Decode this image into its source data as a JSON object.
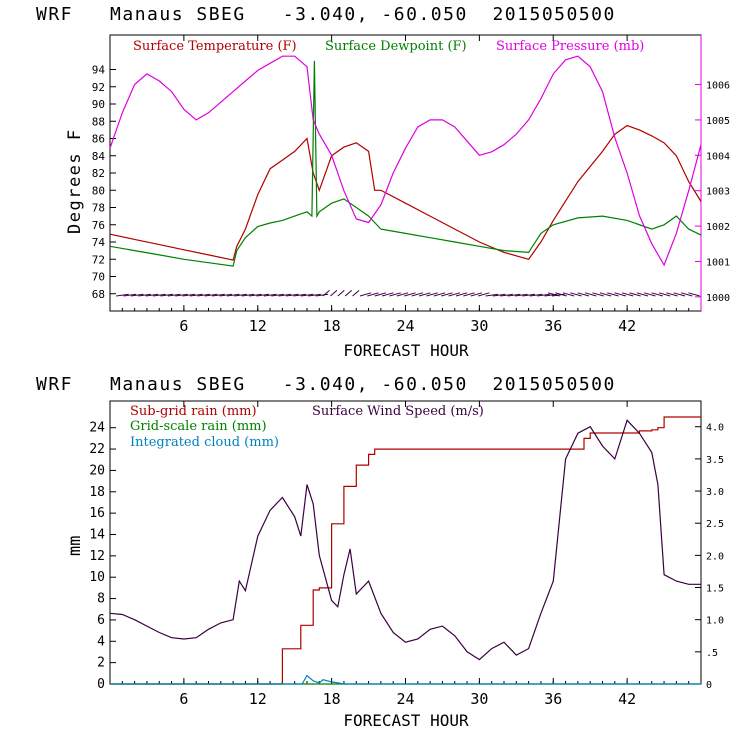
{
  "chart_data": [
    {
      "type": "line",
      "title": "WRF   Manaus SBEG   -3.040, -60.050  2015050500",
      "xlabel": "FORECAST HOUR",
      "ylabel": "Degrees F",
      "y2label": "",
      "x_ticks": [
        "6",
        "12",
        "18",
        "24",
        "30",
        "36",
        "42"
      ],
      "xlim": [
        0,
        48
      ],
      "ylim": [
        66,
        98
      ],
      "y_ticks": [
        "68",
        "70",
        "72",
        "74",
        "76",
        "78",
        "80",
        "82",
        "84",
        "86",
        "88",
        "90",
        "92",
        "94"
      ],
      "y2lim": [
        999.6,
        1007.4
      ],
      "y2_ticks": [
        "1000",
        "1001",
        "1002",
        "1003",
        "1004",
        "1005",
        "1006"
      ],
      "legend": [
        "Surface Temperature (F)",
        "Surface Dewpoint (F)",
        "Surface Pressure (mb)"
      ],
      "legend_placement": "top",
      "colors": {
        "temperature": "#b00000",
        "dewpoint": "#008000",
        "pressure": "#e000e0",
        "wind_barbs": "#3a0040"
      },
      "series": [
        {
          "name": "Surface Temperature (F)",
          "axis": "left",
          "x": [
            0,
            2,
            4,
            6,
            8,
            10,
            10.3,
            11,
            12,
            13,
            14,
            15,
            16,
            16.5,
            17,
            18,
            19,
            20,
            21,
            21.5,
            22,
            24,
            26,
            28,
            30,
            32,
            34,
            35,
            36,
            38,
            40,
            41,
            42,
            43,
            44,
            45,
            46,
            47,
            48
          ],
          "y": [
            74.9,
            74.3,
            73.7,
            73.1,
            72.5,
            71.9,
            73.5,
            75.5,
            79.5,
            82.5,
            83.5,
            84.5,
            86,
            82,
            80,
            84,
            85,
            85.5,
            84.5,
            80,
            80,
            78.5,
            77,
            75.5,
            74,
            72.8,
            72,
            74,
            76.5,
            81,
            84.5,
            86.5,
            87.5,
            87,
            86.3,
            85.5,
            84,
            81,
            78.7
          ]
        },
        {
          "name": "Surface Dewpoint (F)",
          "axis": "left",
          "x": [
            0,
            2,
            4,
            6,
            8,
            10,
            10.3,
            11,
            12,
            13,
            14,
            15,
            16,
            16.4,
            16.6,
            16.8,
            17,
            18,
            19,
            20,
            21,
            22,
            24,
            26,
            28,
            30,
            32,
            34,
            35,
            36,
            38,
            40,
            42,
            44,
            45,
            46,
            47,
            48
          ],
          "y": [
            73.5,
            73,
            72.5,
            72,
            71.6,
            71.2,
            73,
            74.5,
            75.8,
            76.2,
            76.5,
            77,
            77.5,
            77,
            95,
            77,
            77.5,
            78.5,
            79,
            78,
            77,
            75.5,
            75,
            74.5,
            74,
            73.5,
            73,
            72.8,
            75,
            76,
            76.8,
            77,
            76.5,
            75.5,
            76,
            77,
            75.5,
            74.8
          ]
        },
        {
          "name": "Surface Pressure (mb)",
          "axis": "right",
          "x": [
            0,
            1,
            2,
            3,
            4,
            5,
            6,
            7,
            8,
            9,
            10,
            11,
            12,
            13,
            14,
            15,
            16,
            16.5,
            17,
            18,
            19,
            20,
            21,
            22,
            23,
            24,
            25,
            26,
            27,
            28,
            29,
            30,
            31,
            32,
            33,
            34,
            35,
            36,
            37,
            38,
            39,
            40,
            41,
            42,
            43,
            44,
            45,
            46,
            47,
            48
          ],
          "y": [
            1004.2,
            1005.2,
            1006.0,
            1006.3,
            1006.1,
            1005.8,
            1005.3,
            1005.0,
            1005.2,
            1005.5,
            1005.8,
            1006.1,
            1006.4,
            1006.6,
            1006.8,
            1006.8,
            1006.5,
            1005.0,
            1004.6,
            1004.0,
            1003.0,
            1002.2,
            1002.1,
            1002.6,
            1003.5,
            1004.2,
            1004.8,
            1005.0,
            1005.0,
            1004.8,
            1004.4,
            1004.0,
            1004.1,
            1004.3,
            1004.6,
            1005.0,
            1005.6,
            1006.3,
            1006.7,
            1006.8,
            1006.5,
            1005.8,
            1004.5,
            1003.5,
            1002.3,
            1001.5,
            1000.9,
            1001.8,
            1003.0,
            1004.3
          ]
        }
      ]
    },
    {
      "type": "line",
      "title": "WRF   Manaus SBEG   -3.040, -60.050  2015050500",
      "xlabel": "FORECAST HOUR",
      "ylabel": "mm",
      "x_ticks": [
        "6",
        "12",
        "18",
        "24",
        "30",
        "36",
        "42"
      ],
      "xlim": [
        0,
        48
      ],
      "ylim": [
        0,
        26.5
      ],
      "y_ticks": [
        "0",
        "2",
        "4",
        "6",
        "8",
        "10",
        "12",
        "14",
        "16",
        "18",
        "20",
        "22",
        "24"
      ],
      "y2lim": [
        0,
        4.4
      ],
      "y2_ticks": [
        "0",
        ".5",
        "1.0",
        "1.5",
        "2.0",
        "2.5",
        "3.0",
        "3.5",
        "4.0"
      ],
      "legend": [
        "Sub-grid rain (mm)",
        "Surface Wind Speed (m/s)",
        "Grid-scale rain (mm)",
        "Integrated cloud (mm)"
      ],
      "legend_placement": "top-left",
      "colors": {
        "subgrid_rain": "#b00000",
        "wind_speed": "#3a0040",
        "gridscale_rain": "#008000",
        "cloud": "#0080c0"
      },
      "series": [
        {
          "name": "Sub-grid rain (mm)",
          "axis": "left",
          "x": [
            0,
            13.8,
            14,
            15,
            15.5,
            16.5,
            17,
            18,
            19,
            20,
            21,
            21.5,
            38,
            38.5,
            39,
            42,
            43,
            44,
            44.5,
            45,
            47,
            48
          ],
          "y": [
            0,
            0,
            3.3,
            3.3,
            5.5,
            8.8,
            9.0,
            15,
            18.5,
            20.5,
            21.5,
            22,
            22,
            23,
            23.5,
            23.5,
            23.7,
            23.8,
            24,
            25,
            25,
            25
          ]
        },
        {
          "name": "Surface Wind Speed (m/s)",
          "axis": "right",
          "x": [
            0,
            1,
            2,
            3,
            4,
            5,
            6,
            7,
            8,
            9,
            10,
            10.5,
            11,
            12,
            13,
            14,
            15,
            15.5,
            16,
            16.5,
            17,
            18,
            18.5,
            19,
            19.5,
            20,
            21,
            22,
            23,
            24,
            25,
            26,
            27,
            28,
            29,
            30,
            31,
            32,
            33,
            34,
            35,
            36,
            37,
            38,
            39,
            40,
            41,
            42,
            43,
            44,
            44.5,
            45,
            46,
            47,
            48
          ],
          "y": [
            1.1,
            1.08,
            1.0,
            0.9,
            0.8,
            0.72,
            0.7,
            0.72,
            0.85,
            0.95,
            1.0,
            1.6,
            1.45,
            2.3,
            2.7,
            2.9,
            2.6,
            2.3,
            3.1,
            2.8,
            2.0,
            1.3,
            1.2,
            1.7,
            2.1,
            1.4,
            1.6,
            1.1,
            0.8,
            0.65,
            0.7,
            0.85,
            0.9,
            0.75,
            0.5,
            0.38,
            0.55,
            0.65,
            0.45,
            0.55,
            1.1,
            1.6,
            3.5,
            3.9,
            4.0,
            3.7,
            3.5,
            4.1,
            3.9,
            3.6,
            3.1,
            1.7,
            1.6,
            1.55,
            1.55
          ]
        },
        {
          "name": "Grid-scale rain (mm)",
          "axis": "left",
          "x": [
            0,
            48
          ],
          "y": [
            0,
            0
          ]
        },
        {
          "name": "Integrated cloud (mm)",
          "axis": "left",
          "x": [
            0,
            15.6,
            16,
            16.5,
            17,
            17.3,
            18,
            18.5,
            19,
            48
          ],
          "y": [
            0,
            0,
            0.8,
            0.3,
            0.1,
            0.4,
            0.2,
            0.1,
            0,
            0
          ]
        }
      ]
    }
  ]
}
